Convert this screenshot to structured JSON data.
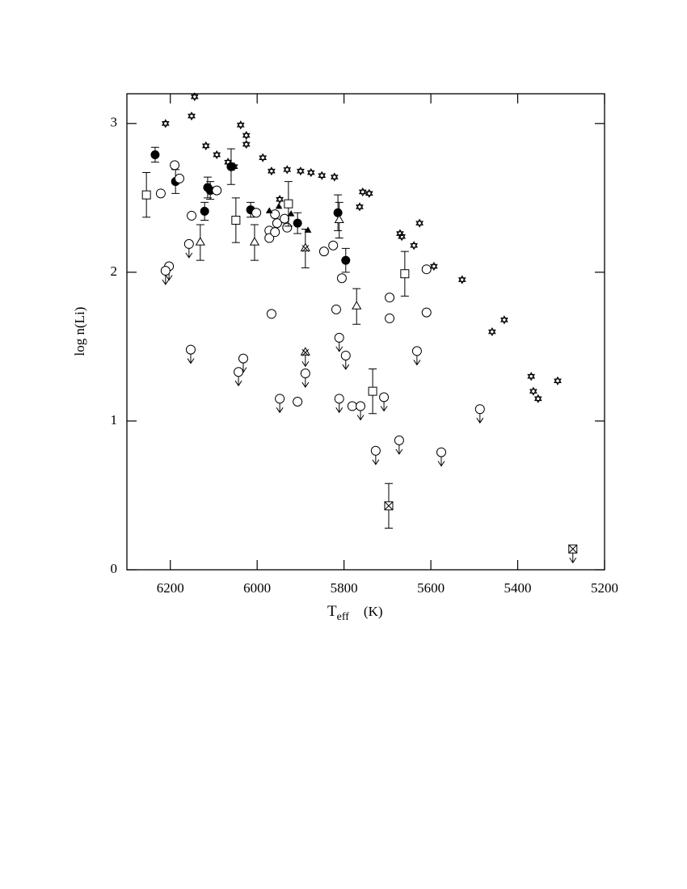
{
  "chart_data": {
    "type": "scatter",
    "ylabel": "log n(Li)",
    "xlabel": {
      "symbol": "T",
      "subscript": "eff",
      "unit": "(K)"
    },
    "xlim": [
      6300,
      5200
    ],
    "xticks": [
      6200,
      6000,
      5800,
      5600,
      5400,
      5200
    ],
    "ylim": [
      0,
      3.2
    ],
    "yticks": [
      0,
      1,
      2,
      3
    ],
    "series": [
      {
        "marker": "filled-circle",
        "color": "#000000",
        "x": [
          6235,
          6188,
          6121,
          6114,
          6108,
          6060,
          6015,
          5907,
          5814,
          5796
        ],
        "values": [
          2.79,
          2.61,
          2.41,
          2.57,
          2.55,
          2.71,
          2.42,
          2.33,
          2.4,
          2.08
        ],
        "errors": [
          0.05,
          0.08,
          0.06,
          0.07,
          0.06,
          0.12,
          0.05,
          0.07,
          0.12,
          0.08
        ]
      },
      {
        "marker": "open-circle",
        "color": "#000000",
        "x": [
          6190,
          6179,
          6222,
          6151,
          6093,
          6002,
          5972,
          5972,
          5959,
          5954,
          5937,
          5931,
          5959,
          5846,
          5825,
          5805,
          5967,
          5818,
          5695,
          5695,
          5610,
          5610,
          5907,
          5781
        ],
        "values": [
          2.72,
          2.63,
          2.53,
          2.38,
          2.55,
          2.4,
          2.28,
          2.23,
          2.27,
          2.33,
          2.36,
          2.3,
          2.39,
          2.14,
          2.18,
          1.96,
          1.72,
          1.75,
          1.83,
          1.69,
          2.02,
          1.73,
          1.13,
          1.1
        ]
      },
      {
        "marker": "open-circle",
        "color": "#000000",
        "upper_limit": true,
        "x": [
          6157,
          6203,
          6211,
          6153,
          6032,
          6043,
          5889,
          5948,
          5811,
          5796,
          5811,
          5762,
          5708,
          5632,
          5727,
          5673,
          5576,
          5487
        ],
        "values": [
          2.19,
          2.04,
          2.01,
          1.48,
          1.42,
          1.33,
          1.32,
          1.15,
          1.56,
          1.44,
          1.15,
          1.1,
          1.16,
          1.47,
          0.8,
          0.87,
          0.79,
          1.08
        ]
      },
      {
        "marker": "open-square",
        "color": "#000000",
        "x": [
          6255,
          6049,
          5928,
          5734,
          5660
        ],
        "values": [
          2.52,
          2.35,
          2.46,
          1.2,
          1.99
        ],
        "errors": [
          0.15,
          0.15,
          0.15,
          0.15,
          0.15
        ]
      },
      {
        "marker": "crossed-square",
        "color": "#000000",
        "x": [
          5697
        ],
        "values": [
          0.43
        ],
        "errors": [
          0.15
        ]
      },
      {
        "marker": "crossed-square",
        "color": "#000000",
        "upper_limit": true,
        "x": [
          5273
        ],
        "values": [
          0.14
        ]
      },
      {
        "marker": "open-triangle",
        "color": "#000000",
        "x": [
          6131,
          6006,
          5811,
          5771
        ],
        "values": [
          2.2,
          2.2,
          2.35,
          1.77
        ],
        "errors": [
          0.12,
          0.12,
          0.12,
          0.12
        ]
      },
      {
        "marker": "filled-triangle",
        "color": "#000000",
        "x": [
          5972,
          5950,
          5922,
          5883
        ],
        "values": [
          2.41,
          2.44,
          2.39,
          2.28
        ]
      },
      {
        "marker": "crossed-triangle",
        "color": "#000000",
        "x": [
          5889
        ],
        "values": [
          2.16
        ],
        "errors": [
          0.13
        ]
      },
      {
        "marker": "crossed-triangle",
        "color": "#000000",
        "upper_limit": true,
        "x": [
          5889
        ],
        "values": [
          1.46
        ]
      },
      {
        "marker": "star",
        "color": "#000000",
        "x": [
          6144,
          6211,
          6151,
          6118,
          6093,
          6067,
          6053,
          6038,
          6025,
          6025,
          5987,
          5967,
          5931,
          5900,
          5876,
          5851,
          5822,
          5948,
          5757,
          5742,
          5764,
          5671,
          5667,
          5639,
          5626,
          5593,
          5528,
          5459,
          5431,
          5369,
          5364,
          5353,
          5308
        ],
        "values": [
          3.18,
          3.0,
          3.05,
          2.85,
          2.79,
          2.74,
          2.71,
          2.99,
          2.92,
          2.86,
          2.77,
          2.68,
          2.69,
          2.68,
          2.67,
          2.65,
          2.64,
          2.49,
          2.54,
          2.53,
          2.44,
          2.26,
          2.24,
          2.18,
          2.33,
          2.04,
          1.95,
          1.6,
          1.68,
          1.3,
          1.2,
          1.15,
          1.27
        ]
      }
    ]
  }
}
